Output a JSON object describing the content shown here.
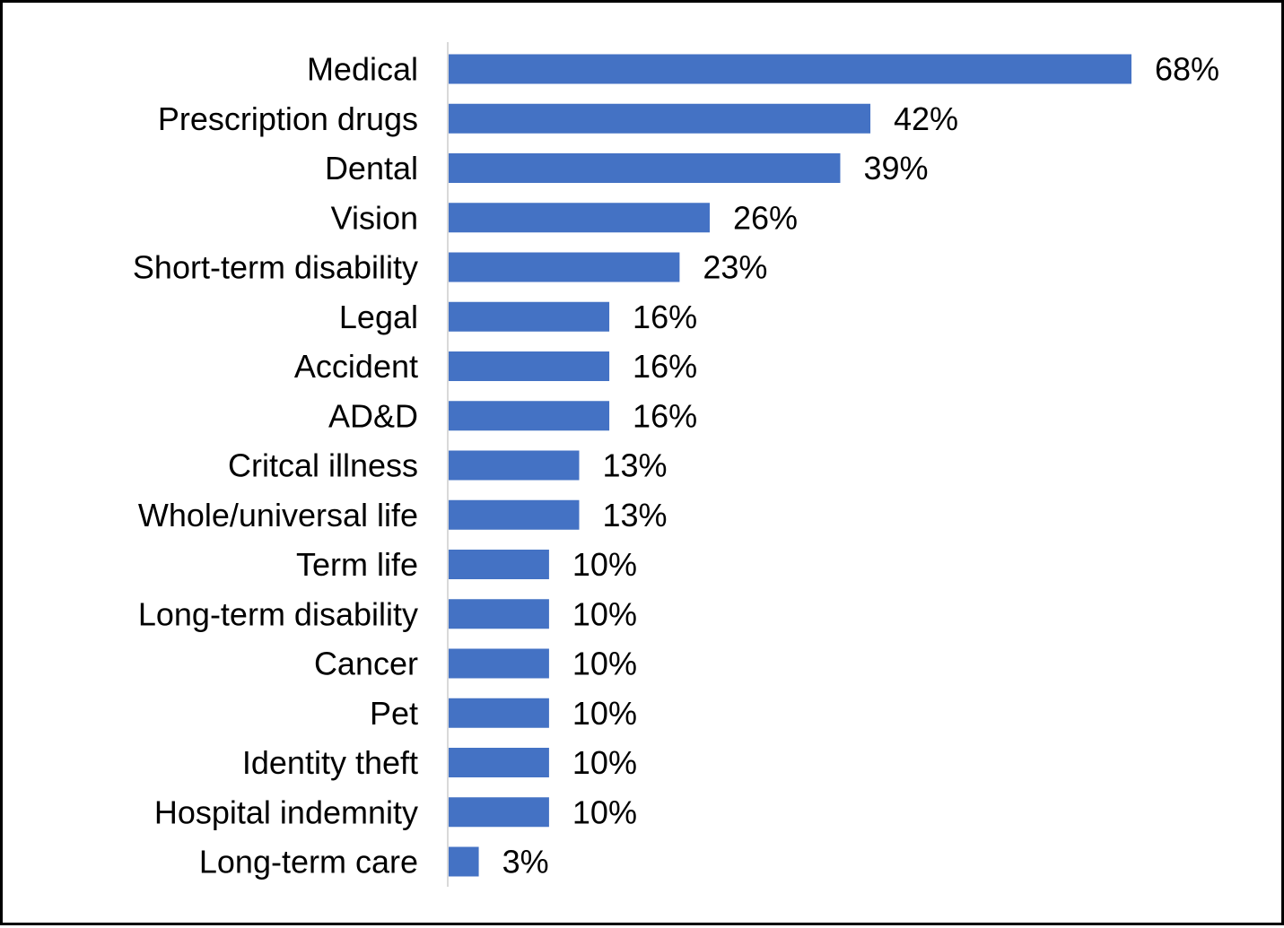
{
  "chart_data": {
    "type": "bar",
    "orientation": "horizontal",
    "categories": [
      "Medical",
      "Prescription drugs",
      "Dental",
      "Vision",
      "Short-term disability",
      "Legal",
      "Accident",
      "AD&D",
      "Critcal illness",
      "Whole/universal life",
      "Term life",
      "Long-term disability",
      "Cancer",
      "Pet",
      "Identity theft",
      "Hospital indemnity",
      "Long-term care"
    ],
    "values": [
      68,
      42,
      39,
      26,
      23,
      16,
      16,
      16,
      13,
      13,
      10,
      10,
      10,
      10,
      10,
      10,
      3
    ],
    "value_labels": [
      "68%",
      "42%",
      "39%",
      "26%",
      "23%",
      "16%",
      "16%",
      "16%",
      "13%",
      "13%",
      "10%",
      "10%",
      "10%",
      "10%",
      "10%",
      "10%",
      "3%"
    ],
    "bar_color": "#4472C4",
    "axis_color": "#D9D9D9",
    "grid": false,
    "legend": "none"
  }
}
